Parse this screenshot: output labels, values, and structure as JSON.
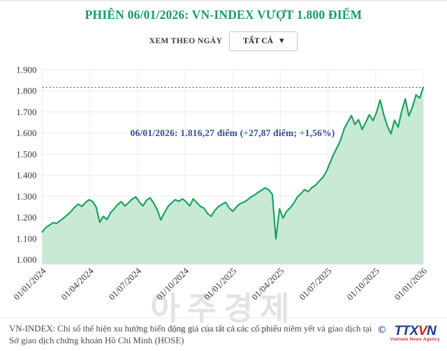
{
  "page": {
    "title": "PHIÊN 06/01/2026: VN-INDEX VƯỢT 1.800 ĐIỂM"
  },
  "controls": {
    "label": "XEM THEO NGÀY",
    "dropdown_value": "TẤT CẢ",
    "caret_icon": "▼"
  },
  "chart_data": {
    "type": "area",
    "series_name": "VN-INDEX",
    "x_range": [
      "01/01/2024",
      "06/01/2026"
    ],
    "x_tick_labels": [
      "01/01/2024",
      "01/04/2024",
      "01/07/2024",
      "01/10/2024",
      "01/01/2025",
      "01/04/2025",
      "01/07/2025",
      "01/10/2025",
      "01/01/2026"
    ],
    "y_ticks": [
      {
        "value": 1900,
        "label": "1.900"
      },
      {
        "value": 1800,
        "label": "1.800"
      },
      {
        "value": 1700,
        "label": "1.700"
      },
      {
        "value": 1600,
        "label": "1.600"
      },
      {
        "value": 1500,
        "label": "1.500"
      },
      {
        "value": 1400,
        "label": "1.400"
      },
      {
        "value": 1300,
        "label": "1.300"
      },
      {
        "value": 1200,
        "label": "1.200"
      },
      {
        "value": 1100,
        "label": "1.100"
      },
      {
        "value": 1000,
        "label": "1.000"
      }
    ],
    "ylim": [
      1000,
      1900
    ],
    "grid": true,
    "values": [
      1131,
      1152,
      1163,
      1175,
      1172,
      1185,
      1198,
      1212,
      1228,
      1248,
      1263,
      1252,
      1270,
      1284,
      1276,
      1249,
      1177,
      1205,
      1190,
      1222,
      1241,
      1261,
      1275,
      1254,
      1270,
      1287,
      1297,
      1274,
      1254,
      1281,
      1293,
      1268,
      1236,
      1188,
      1223,
      1252,
      1269,
      1284,
      1276,
      1288,
      1275,
      1254,
      1288,
      1270,
      1252,
      1244,
      1218,
      1205,
      1233,
      1251,
      1262,
      1272,
      1245,
      1229,
      1249,
      1265,
      1271,
      1282,
      1296,
      1305,
      1318,
      1329,
      1340,
      1331,
      1309,
      1098,
      1241,
      1197,
      1229,
      1246,
      1268,
      1297,
      1313,
      1332,
      1322,
      1341,
      1352,
      1371,
      1388,
      1416,
      1457,
      1497,
      1531,
      1566,
      1621,
      1652,
      1683,
      1641,
      1663,
      1617,
      1651,
      1687,
      1659,
      1698,
      1757,
      1688,
      1634,
      1596,
      1661,
      1628,
      1703,
      1762,
      1681,
      1724,
      1781,
      1766,
      1816.27
    ],
    "annotation": {
      "value": 1816.27,
      "prefix": "06/01/2026: 1.816,27 điểm (",
      "plus1": "+",
      "mid": "27,87 điểm; ",
      "plus2": "+",
      "suffix": "1,56%)"
    },
    "last_point": {
      "date": "06/01/2026",
      "value": 1816.27,
      "change": "+27,87",
      "change_pct": "+1,56%"
    }
  },
  "watermark": {
    "text": "아주경제",
    "url": "www.ajunews.com"
  },
  "footer": {
    "description": "VN-INDEX: Chỉ số thể hiện xu hướng biến động giá của tất cả các cổ phiếu niêm yết và giao dịch tại Sở giao dịch chứng khoán Hồ Chí Minh (HOSE)",
    "copyright": "©",
    "logo_blue1": "TTX",
    "logo_red": "V",
    "logo_blue2": "N",
    "logo_sub": "Vietnam News Agency"
  },
  "colors": {
    "title": "#189b66",
    "line": "#1ba35f",
    "fill": "#c9e9d7",
    "grid": "#ececec",
    "axis_text": "#32383e",
    "annotation": "#31508f",
    "plus": "#2aa06b"
  }
}
